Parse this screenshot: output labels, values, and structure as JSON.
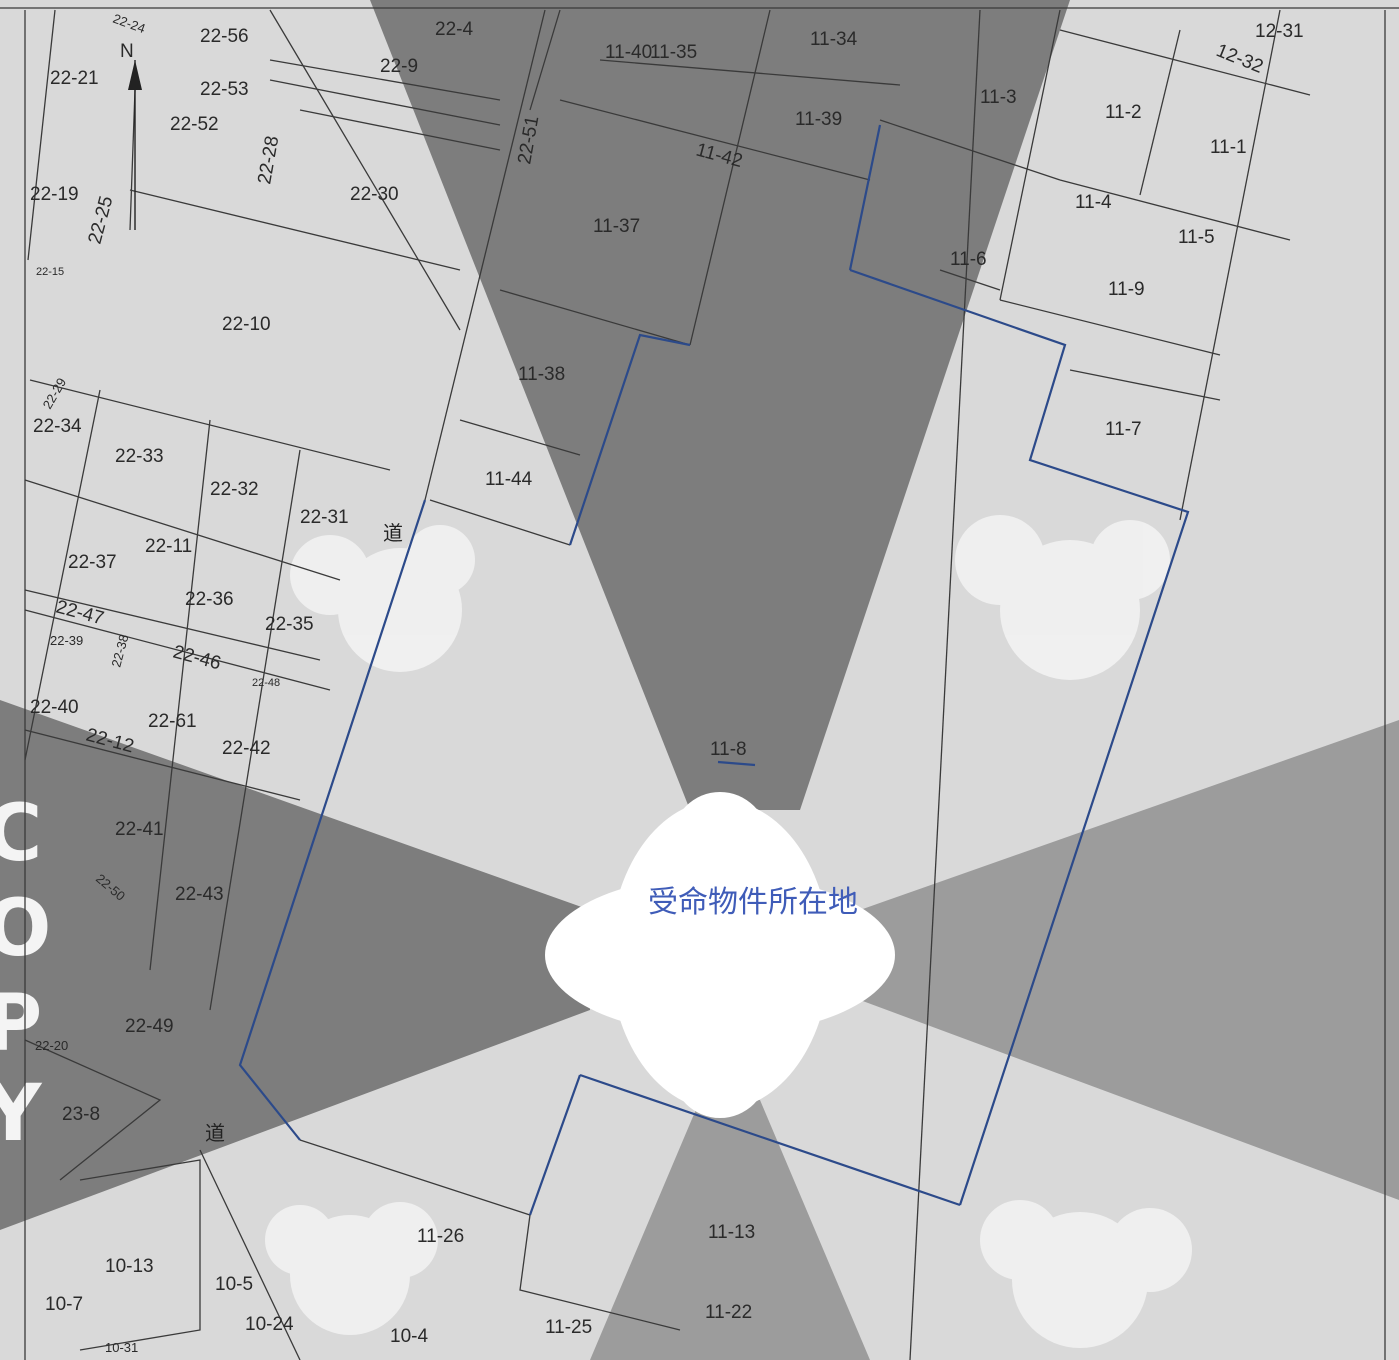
{
  "map": {
    "north_label": "N",
    "caption": "受命物件所在地",
    "watermark": "COPY",
    "road_mark": "道",
    "colors": {
      "background": "#d9d9d9",
      "sector_dark": "#7d7d7d",
      "sector_mid": "#9c9c9c",
      "boundary": "#2c4a8a",
      "line": "#3a3a3a",
      "caption": "#3f5cb8"
    },
    "parcels": [
      "22-24",
      "22-21",
      "22-56",
      "22-53",
      "22-52",
      "22-28",
      "22-30",
      "22-4",
      "22-9",
      "22-51",
      "11-40",
      "11-35",
      "11-34",
      "11-39",
      "11-3",
      "11-2",
      "11-1",
      "12-31",
      "12-32",
      "11-42",
      "11-37",
      "11-4",
      "11-5",
      "11-6",
      "11-9",
      "22-19",
      "22-25",
      "22-15",
      "22-10",
      "11-38",
      "11-7",
      "22-34",
      "22-33",
      "22-32",
      "22-31",
      "11-44",
      "22-37",
      "22-11",
      "22-36",
      "22-35",
      "22-47",
      "22-46",
      "22-48",
      "22-40",
      "22-12",
      "22-61",
      "22-42",
      "11-8",
      "22-41",
      "22-50",
      "22-43",
      "22-49",
      "22-20",
      "23-8",
      "11-26",
      "11-13",
      "10-13",
      "10-5",
      "10-7",
      "10-24",
      "10-4",
      "10-31",
      "11-25",
      "11-22",
      "22-29",
      "22-39",
      "22-38"
    ]
  }
}
